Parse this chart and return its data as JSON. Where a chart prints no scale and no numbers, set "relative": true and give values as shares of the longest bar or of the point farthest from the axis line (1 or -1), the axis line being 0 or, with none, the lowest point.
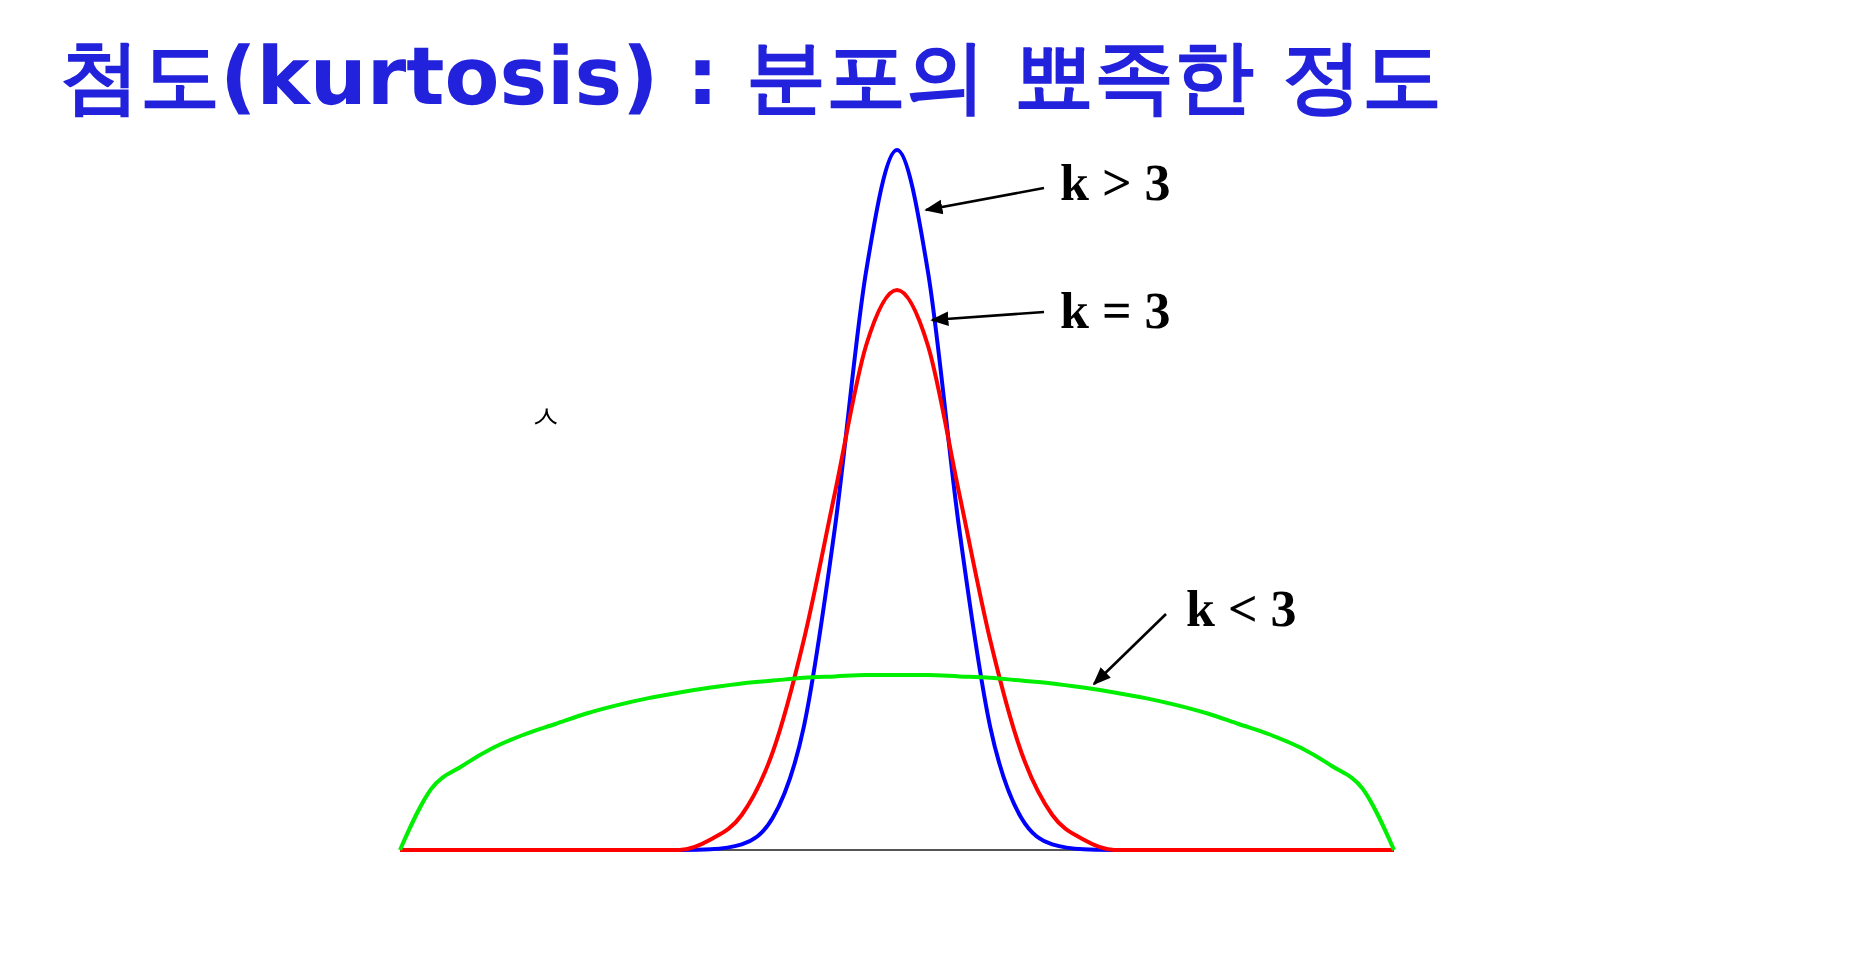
{
  "chart_data": {
    "type": "line",
    "title": "첨도(kurtosis) : 분포의 뾰족한 정도",
    "relative": true,
    "categories": [
      null,
      null,
      null,
      null,
      null,
      null,
      null,
      null,
      null,
      null,
      null,
      null,
      null,
      null,
      null,
      null,
      null,
      null,
      null,
      null,
      null,
      null,
      null,
      null,
      null,
      null,
      null,
      null,
      null,
      null,
      null,
      null,
      null
    ],
    "series": [
      {
        "name": "k > 3",
        "color": "#0000ff",
        "values": [
          null,
          null,
          null,
          null,
          null,
          null,
          null,
          null,
          null,
          0,
          0.001,
          0.008,
          0.046,
          0.176,
          0.46,
          0.825,
          1,
          0.825,
          0.46,
          0.176,
          0.046,
          0.008,
          0.001,
          0,
          null,
          null,
          null,
          null,
          null,
          null,
          null,
          null,
          null
        ]
      },
      {
        "name": "k = 3",
        "color": "#ff0000",
        "values": [
          0,
          0,
          0,
          0,
          0,
          0,
          0,
          0,
          0,
          0,
          0.015,
          0.05,
          0.14,
          0.3,
          0.51,
          0.72,
          0.8,
          0.72,
          0.51,
          0.3,
          0.14,
          0.05,
          0.015,
          0,
          0,
          0,
          0,
          0,
          0,
          0,
          0,
          0,
          0
        ]
      },
      {
        "name": "k < 3",
        "color": "#00ee00",
        "values": [
          0,
          0.087,
          0.12,
          0.146,
          0.165,
          0.18,
          0.195,
          0.207,
          0.217,
          0.225,
          0.232,
          0.238,
          0.242,
          0.246,
          0.248,
          0.25,
          0.25,
          0.25,
          0.248,
          0.246,
          0.242,
          0.238,
          0.232,
          0.225,
          0.217,
          0.207,
          0.195,
          0.18,
          0.165,
          0.146,
          0.12,
          0.087,
          0
        ]
      }
    ],
    "annotations": [
      "ㅅ"
    ]
  }
}
